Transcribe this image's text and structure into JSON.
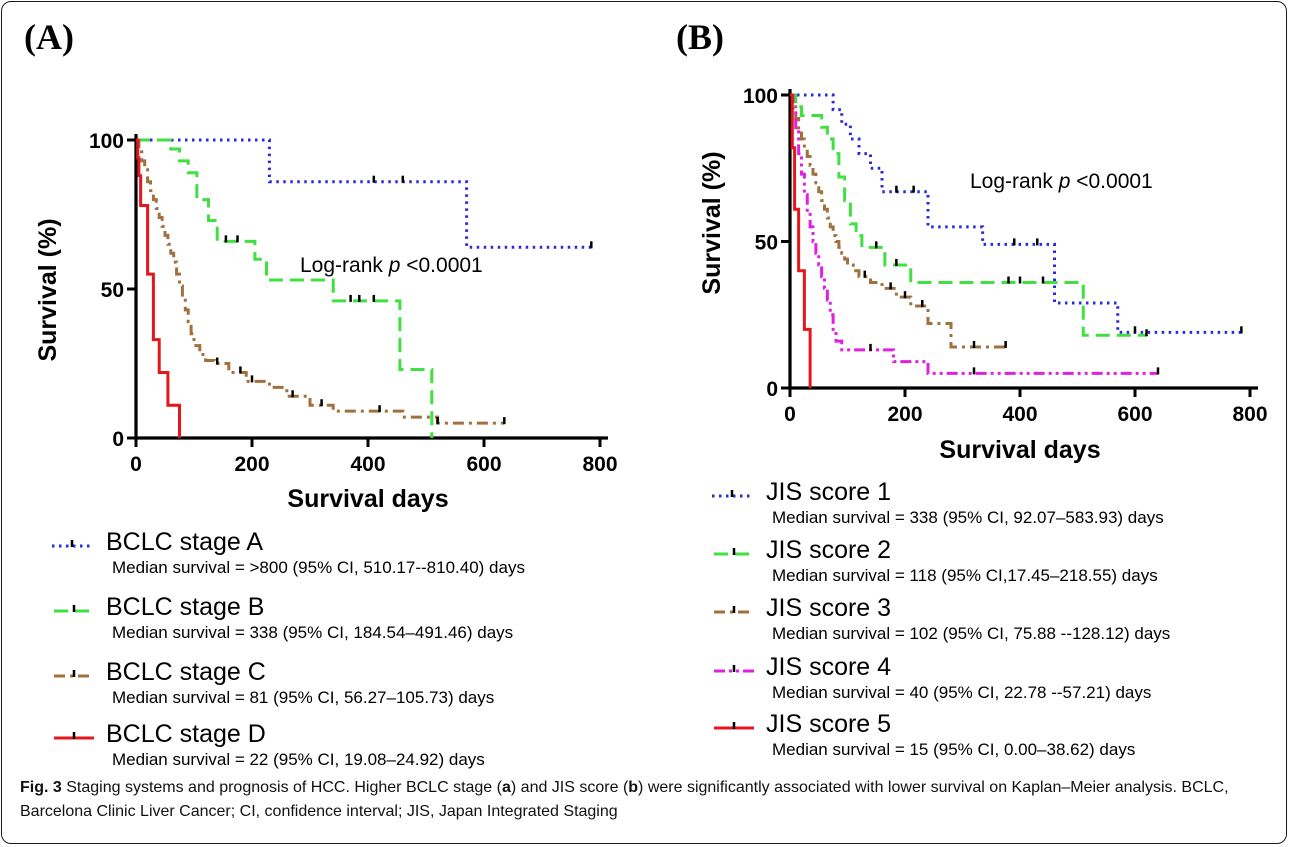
{
  "panels": {
    "a_label": "(A)",
    "b_label": "(B)"
  },
  "caption": {
    "fig": "Fig. 3",
    "part1": " Staging systems and prognosis of HCC. Higher BCLC stage (",
    "a": "a",
    "part2": ") and JIS score (",
    "b": "b",
    "part3": ") were significantly associated with lower survival on Kaplan–Meier analysis. BCLC, Barcelona Clinic Liver Cancer; CI, confidence interval; JIS, Japan Integrated Staging"
  },
  "chart_data": [
    {
      "type": "line",
      "subtype": "kaplan-meier step",
      "xlabel": "Survival days",
      "ylabel": "Survival (%)",
      "xlim": [
        0,
        800
      ],
      "ylim": [
        0,
        100
      ],
      "xticks": [
        0,
        200,
        400,
        600,
        800
      ],
      "yticks": [
        0,
        50,
        100
      ],
      "annotation": {
        "prefix": "Log-rank ",
        "italic": "p",
        "suffix": "  <0.0001"
      },
      "grid": false,
      "legend_position": "below",
      "series": [
        {
          "name": "BCLC stage A",
          "median_text": "Median survival = >800 (95% CI, 510.17--810.40) days",
          "color": "#2b2bd6",
          "dash": "dotted",
          "x": [
            0,
            230,
            570,
            785
          ],
          "y": [
            100,
            86,
            64,
            64
          ],
          "censored": [
            [
              410,
              86
            ],
            [
              460,
              86
            ],
            [
              785,
              64
            ]
          ]
        },
        {
          "name": "BCLC stage B",
          "median_text": "Median survival = 338 (95% CI, 184.54–491.46) days",
          "color": "#3fe03f",
          "dash": "dashed",
          "x": [
            0,
            40,
            60,
            75,
            90,
            105,
            125,
            140,
            205,
            225,
            340,
            455,
            510
          ],
          "y": [
            100,
            100,
            97,
            93,
            89,
            80,
            73,
            66,
            60,
            53,
            46,
            23,
            0
          ],
          "censored": [
            [
              155,
              66
            ],
            [
              175,
              66
            ],
            [
              370,
              46
            ],
            [
              385,
              46
            ],
            [
              410,
              46
            ]
          ]
        },
        {
          "name": "BCLC stage C",
          "median_text": "Median survival = 81 (95% CI, 56.27–105.73) days",
          "color": "#a0703e",
          "dash": "dashdot",
          "x": [
            0,
            5,
            10,
            15,
            20,
            25,
            30,
            35,
            40,
            45,
            50,
            55,
            60,
            65,
            70,
            75,
            80,
            85,
            90,
            95,
            100,
            110,
            120,
            135,
            160,
            190,
            230,
            260,
            300,
            340,
            460,
            520,
            635
          ],
          "y": [
            100,
            96,
            93,
            90,
            86,
            83,
            80,
            77,
            74,
            71,
            68,
            65,
            62,
            59,
            55,
            51,
            47,
            43,
            39,
            35,
            31,
            28,
            26,
            25,
            22,
            19,
            17,
            14,
            11,
            9,
            7,
            5,
            5
          ],
          "censored": [
            [
              140,
              25
            ],
            [
              180,
              22
            ],
            [
              200,
              19
            ],
            [
              270,
              14
            ],
            [
              320,
              11
            ],
            [
              420,
              9
            ],
            [
              520,
              5
            ],
            [
              635,
              5
            ]
          ]
        },
        {
          "name": "BCLC stage D",
          "median_text": "Median survival = 22 (95% CI, 19.08–24.92) days",
          "color": "#e4171c",
          "dash": "solid",
          "x": [
            0,
            3,
            5,
            8,
            12,
            20,
            30,
            40,
            55,
            75
          ],
          "y": [
            100,
            94,
            88,
            78,
            78,
            55,
            33,
            22,
            11,
            0
          ],
          "censored": []
        }
      ]
    },
    {
      "type": "line",
      "subtype": "kaplan-meier step",
      "xlabel": "Survival days",
      "ylabel": "Survival (%)",
      "xlim": [
        0,
        800
      ],
      "ylim": [
        0,
        100
      ],
      "xticks": [
        0,
        200,
        400,
        600,
        800
      ],
      "yticks": [
        0,
        50,
        100
      ],
      "annotation": {
        "prefix": "Log-rank ",
        "italic": "p",
        "suffix": "  <0.0001"
      },
      "grid": false,
      "legend_position": "below",
      "series": [
        {
          "name": "JIS score 1",
          "median_text": "Median survival =  338 (95% CI, 92.07–583.93) days",
          "color": "#2b2bd6",
          "dash": "dotted",
          "x": [
            0,
            75,
            90,
            105,
            120,
            140,
            160,
            240,
            335,
            460,
            570,
            785
          ],
          "y": [
            100,
            95,
            90,
            85,
            80,
            75,
            67,
            55,
            49,
            29,
            19,
            19
          ],
          "censored": [
            [
              185,
              67
            ],
            [
              215,
              67
            ],
            [
              390,
              49
            ],
            [
              430,
              49
            ],
            [
              600,
              19
            ],
            [
              785,
              19
            ]
          ]
        },
        {
          "name": "JIS score 2",
          "median_text": "Median survival = 118 (95% CI,17.45–218.55) days",
          "color": "#3fe03f",
          "dash": "dashed",
          "x": [
            0,
            10,
            20,
            40,
            55,
            65,
            75,
            85,
            95,
            105,
            115,
            125,
            165,
            210,
            510,
            620
          ],
          "y": [
            100,
            96,
            93,
            93,
            89,
            85,
            80,
            72,
            64,
            56,
            52,
            48,
            42,
            36,
            18,
            18
          ],
          "censored": [
            [
              150,
              48
            ],
            [
              185,
              42
            ],
            [
              380,
              36
            ],
            [
              400,
              36
            ],
            [
              440,
              36
            ],
            [
              620,
              18
            ]
          ]
        },
        {
          "name": "JIS score 3",
          "median_text": "Median survival = 102 (95% CI, 75.88 --128.12) days",
          "color": "#a0703e",
          "dash": "dashdot",
          "x": [
            0,
            5,
            10,
            15,
            20,
            25,
            30,
            35,
            40,
            45,
            50,
            55,
            60,
            65,
            70,
            75,
            80,
            85,
            90,
            95,
            100,
            110,
            120,
            140,
            160,
            185,
            210,
            240,
            280,
            375
          ],
          "y": [
            100,
            96,
            92,
            88,
            85,
            82,
            79,
            76,
            73,
            70,
            67,
            64,
            61,
            58,
            55,
            52,
            50,
            48,
            46,
            44,
            42,
            40,
            38,
            36,
            34,
            31,
            28,
            22,
            14,
            14
          ],
          "censored": [
            [
              130,
              38
            ],
            [
              175,
              34
            ],
            [
              200,
              31
            ],
            [
              230,
              28
            ],
            [
              320,
              14
            ],
            [
              375,
              14
            ]
          ]
        },
        {
          "name": "JIS score 4",
          "median_text": "Median survival =  40 (95% CI, 22.78 --57.21) days",
          "color": "#e020e0",
          "dash": "dashdotdot",
          "x": [
            0,
            5,
            10,
            15,
            20,
            25,
            30,
            35,
            40,
            45,
            50,
            55,
            60,
            65,
            70,
            75,
            80,
            90,
            180,
            240,
            640
          ],
          "y": [
            100,
            95,
            88,
            80,
            73,
            66,
            60,
            55,
            50,
            46,
            42,
            38,
            34,
            30,
            25,
            20,
            16,
            13,
            9,
            5,
            5
          ],
          "censored": [
            [
              140,
              13
            ],
            [
              320,
              5
            ],
            [
              640,
              5
            ]
          ]
        },
        {
          "name": "JIS score 5",
          "median_text": "Median survival =  15 (95% CI, 0.00–38.62) days",
          "color": "#e4171c",
          "dash": "solid",
          "x": [
            0,
            4,
            8,
            15,
            25,
            35
          ],
          "y": [
            100,
            82,
            61,
            40,
            20,
            0
          ],
          "censored": []
        }
      ]
    }
  ]
}
